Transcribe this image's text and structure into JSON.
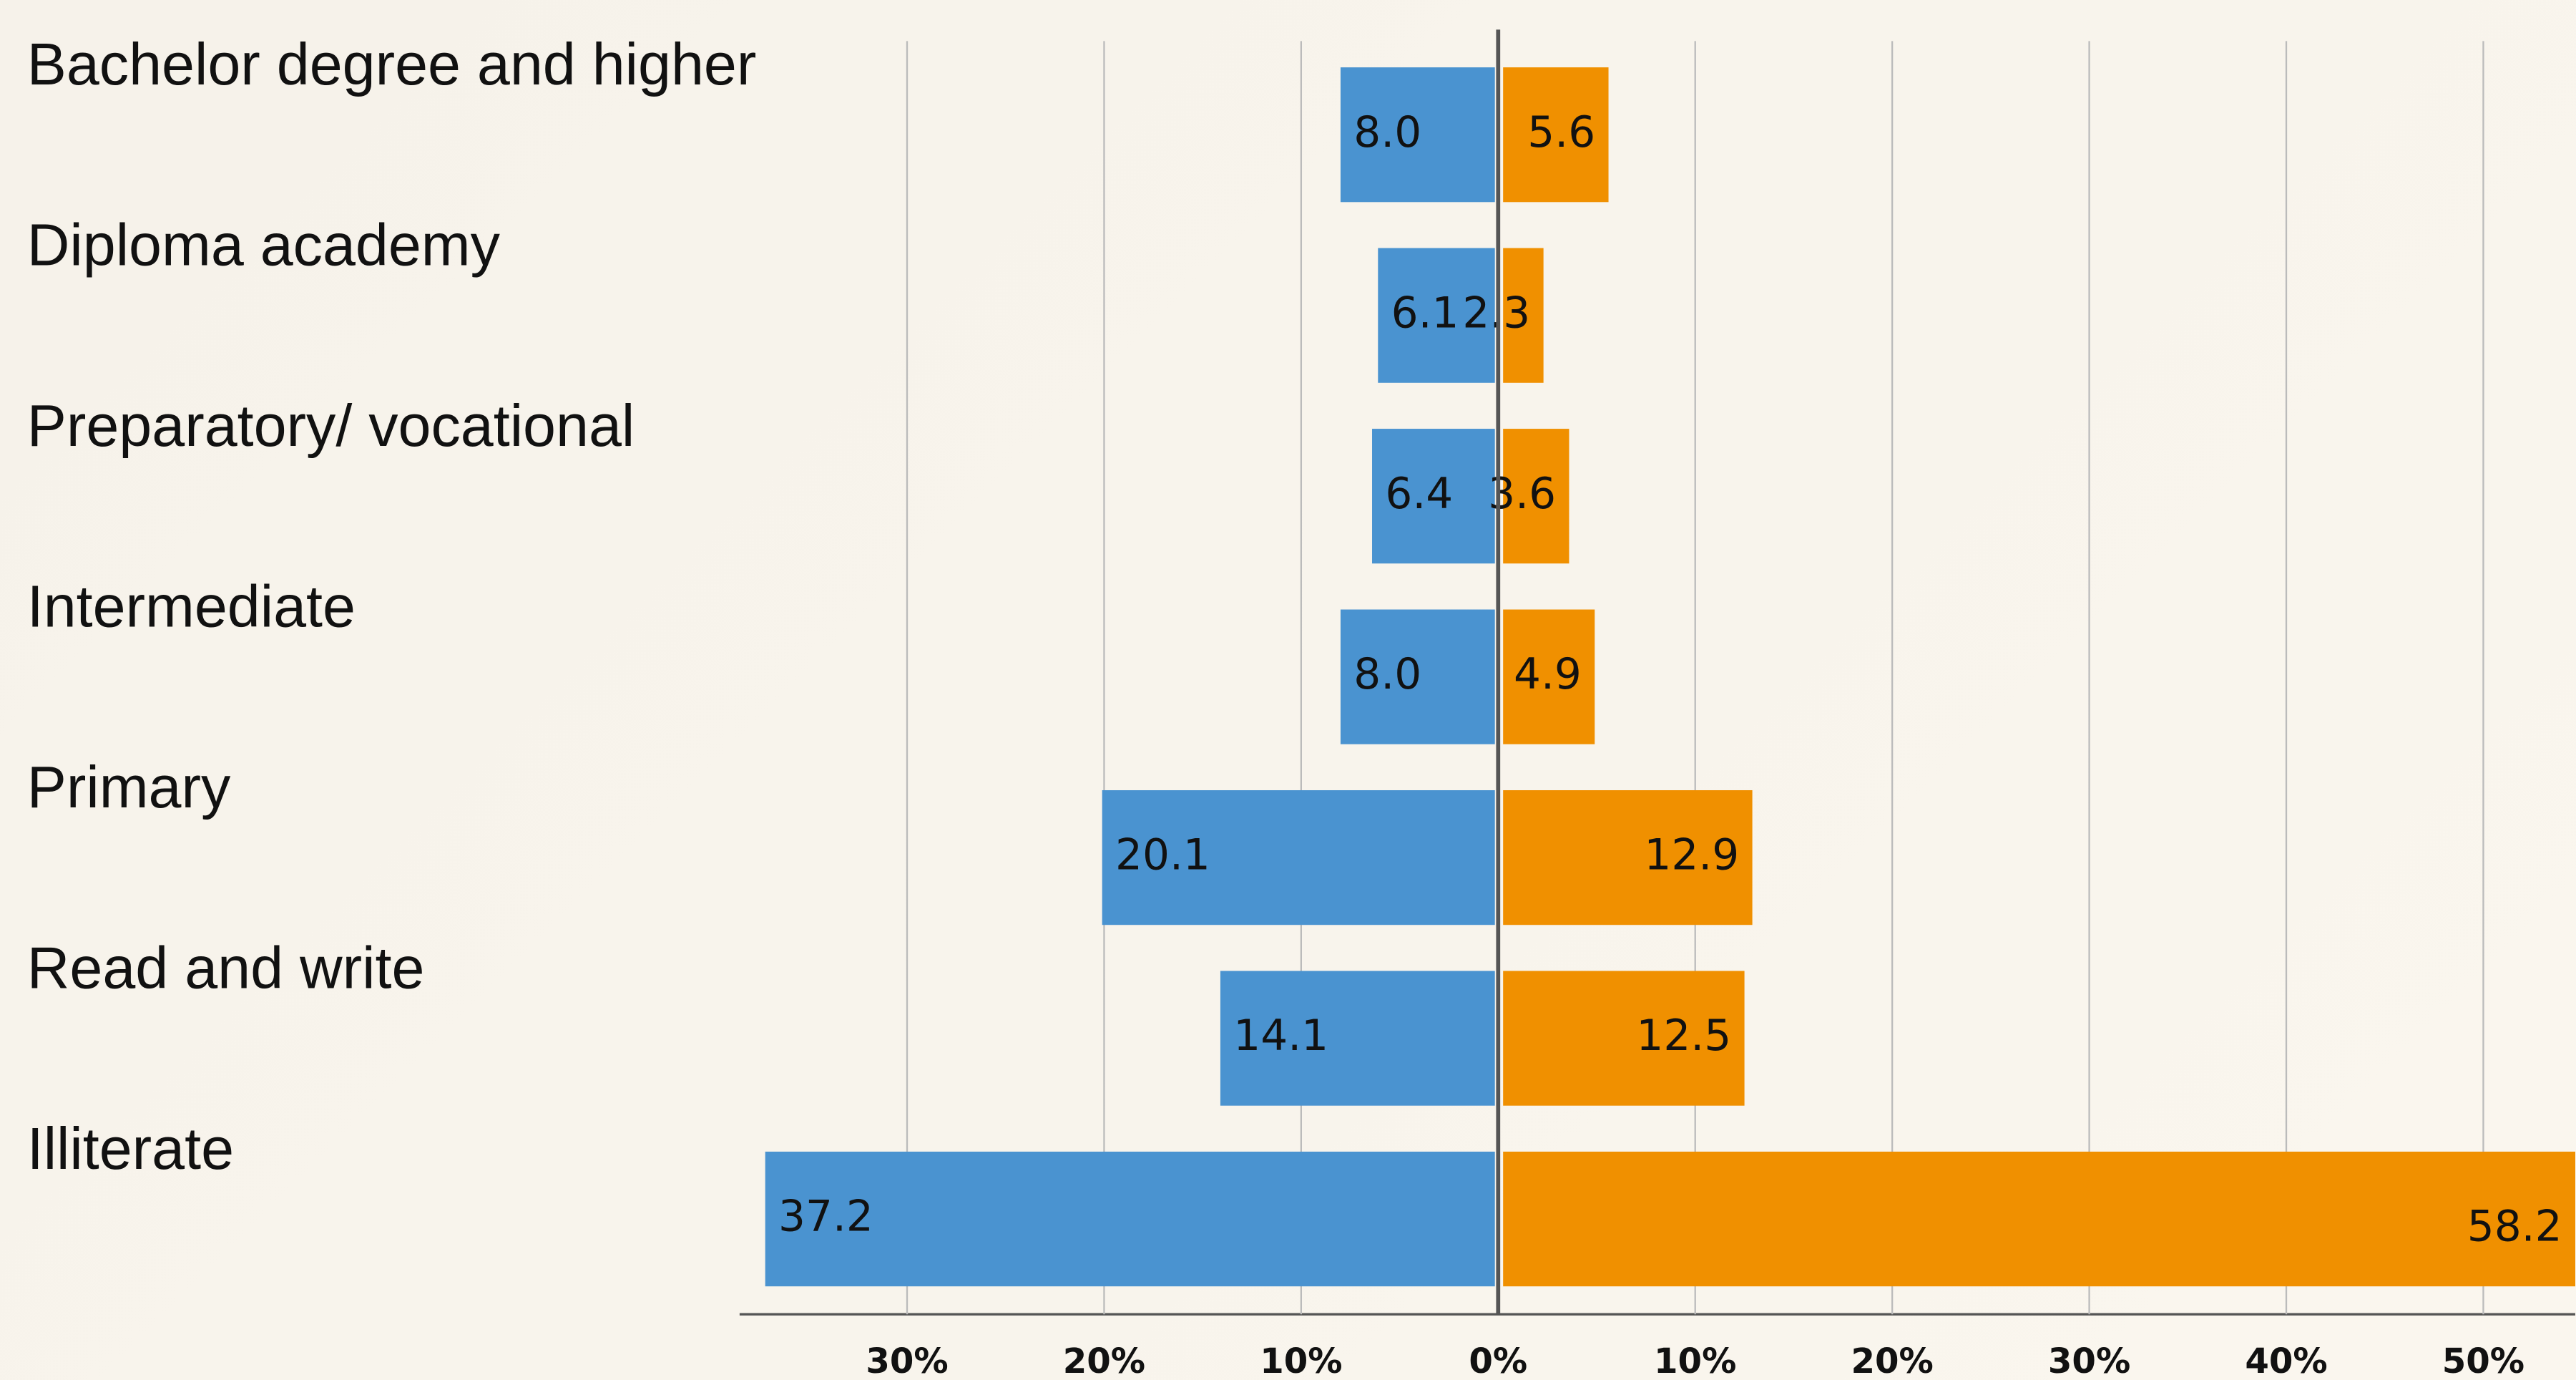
{
  "chart_data": [
    {
      "type": "hbar",
      "direction": "left",
      "categories": [
        "Bachelor degree and higher",
        "Diploma academy",
        "Preparatory/ vocational",
        "Intermediate",
        "Primary",
        "Read and write",
        "Illiterate"
      ],
      "values": [
        8.0,
        6.1,
        6.4,
        8.0,
        20.1,
        14.1,
        37.2
      ],
      "value_labels": [
        "8.0",
        "6.1",
        "6.4",
        "8.0",
        "20.1",
        "14.1",
        "37.2"
      ],
      "color": "#4a93d0",
      "xlim": [
        38,
        0
      ],
      "xticks": [
        {
          "value": 30,
          "label": "30%"
        },
        {
          "value": 20,
          "label": "20%"
        },
        {
          "value": 10,
          "label": "10%"
        },
        {
          "value": 0,
          "label": "0%"
        }
      ],
      "grid": true
    },
    {
      "type": "hbar",
      "direction": "right",
      "values": [
        5.6,
        2.3,
        3.6,
        4.9,
        12.9,
        12.5,
        58.2
      ],
      "value_labels": [
        "5.6",
        "2.3",
        "3.6",
        "4.9",
        "12.9",
        "12.5",
        "58.2"
      ],
      "color": "#f09000",
      "xlim": [
        0,
        54.5
      ],
      "xticks": [
        {
          "value": 10,
          "label": "10%"
        },
        {
          "value": 20,
          "label": "20%"
        },
        {
          "value": 30,
          "label": "30%"
        },
        {
          "value": 40,
          "label": "40%"
        },
        {
          "value": 50,
          "label": "50%"
        }
      ],
      "grid": true
    }
  ]
}
